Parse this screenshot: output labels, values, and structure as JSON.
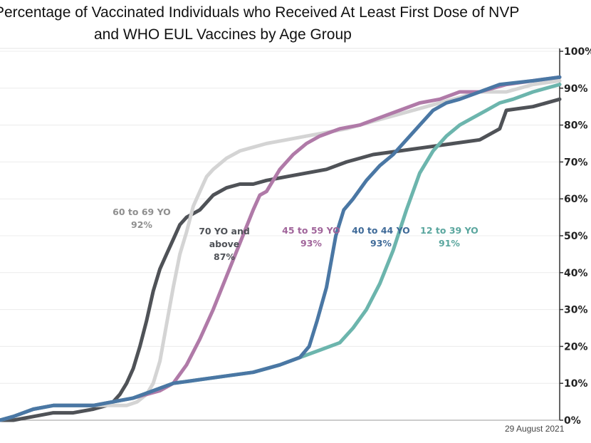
{
  "chart_data": {
    "type": "line",
    "title_line1": "Percentage of Vaccinated Individuals who Received At Least First Dose of NVP",
    "title_line2": "and WHO EUL Vaccines by Age Group",
    "ylim": [
      0,
      100
    ],
    "y_ticks": [
      "0%",
      "10%",
      "20%",
      "30%",
      "40%",
      "50%",
      "60%",
      "70%",
      "80%",
      "90%",
      "100%"
    ],
    "grid": "horizontal",
    "date_note": "29 August 2021",
    "colors": {
      "60 to 69 YO": "#d4d4d4",
      "70 YO and above": "#4f5257",
      "45 to 59 YO": "#b07aa8",
      "40 to 44 YO": "#4a77a4",
      "12 to 39 YO": "#6cb5ad"
    },
    "series": [
      {
        "name": "60 to 69 YO",
        "label_lines": [
          "60 to 69 YO",
          "92%"
        ],
        "final": "92%",
        "points": [
          [
            0,
            0
          ],
          [
            10,
            1
          ],
          [
            25,
            3
          ],
          [
            40,
            4
          ],
          [
            55,
            4
          ],
          [
            70,
            4
          ],
          [
            85,
            4
          ],
          [
            95,
            4
          ],
          [
            103,
            5
          ],
          [
            110,
            7
          ],
          [
            115,
            10
          ],
          [
            120,
            16
          ],
          [
            125,
            26
          ],
          [
            130,
            36
          ],
          [
            135,
            45
          ],
          [
            140,
            51
          ],
          [
            145,
            58
          ],
          [
            150,
            62
          ],
          [
            155,
            66
          ],
          [
            160,
            68
          ],
          [
            170,
            71
          ],
          [
            180,
            73
          ],
          [
            190,
            74
          ],
          [
            200,
            75
          ],
          [
            215,
            76
          ],
          [
            230,
            77
          ],
          [
            245,
            78
          ],
          [
            260,
            79
          ],
          [
            280,
            81
          ],
          [
            300,
            83
          ],
          [
            320,
            85
          ],
          [
            340,
            87
          ],
          [
            360,
            89
          ],
          [
            380,
            89
          ],
          [
            400,
            91
          ],
          [
            420,
            92
          ]
        ]
      },
      {
        "name": "70 YO and above",
        "label_lines": [
          "70 YO and",
          "above",
          "87%"
        ],
        "final": "87%",
        "points": [
          [
            0,
            0
          ],
          [
            10,
            0
          ],
          [
            25,
            1
          ],
          [
            40,
            2
          ],
          [
            55,
            2
          ],
          [
            70,
            3
          ],
          [
            80,
            4
          ],
          [
            85,
            5
          ],
          [
            90,
            7
          ],
          [
            95,
            10
          ],
          [
            100,
            14
          ],
          [
            105,
            20
          ],
          [
            110,
            27
          ],
          [
            115,
            35
          ],
          [
            120,
            41
          ],
          [
            125,
            45
          ],
          [
            130,
            49
          ],
          [
            135,
            53
          ],
          [
            140,
            55
          ],
          [
            150,
            57
          ],
          [
            160,
            61
          ],
          [
            170,
            63
          ],
          [
            180,
            64
          ],
          [
            190,
            64
          ],
          [
            200,
            65
          ],
          [
            215,
            66
          ],
          [
            230,
            67
          ],
          [
            245,
            68
          ],
          [
            260,
            70
          ],
          [
            280,
            72
          ],
          [
            300,
            73
          ],
          [
            320,
            74
          ],
          [
            340,
            75
          ],
          [
            360,
            76
          ],
          [
            375,
            79
          ],
          [
            380,
            84
          ],
          [
            400,
            85
          ],
          [
            420,
            87
          ]
        ]
      },
      {
        "name": "45 to 59 YO",
        "label_lines": [
          "45 to 59 YO",
          "93%"
        ],
        "final": "93%",
        "points": [
          [
            0,
            0
          ],
          [
            10,
            1
          ],
          [
            25,
            3
          ],
          [
            40,
            4
          ],
          [
            55,
            4
          ],
          [
            70,
            4
          ],
          [
            85,
            5
          ],
          [
            100,
            6
          ],
          [
            110,
            7
          ],
          [
            120,
            8
          ],
          [
            130,
            10
          ],
          [
            140,
            15
          ],
          [
            150,
            22
          ],
          [
            160,
            30
          ],
          [
            170,
            39
          ],
          [
            180,
            48
          ],
          [
            190,
            57
          ],
          [
            195,
            61
          ],
          [
            200,
            62
          ],
          [
            210,
            68
          ],
          [
            220,
            72
          ],
          [
            230,
            75
          ],
          [
            240,
            77
          ],
          [
            255,
            79
          ],
          [
            270,
            80
          ],
          [
            285,
            82
          ],
          [
            300,
            84
          ],
          [
            315,
            86
          ],
          [
            330,
            87
          ],
          [
            345,
            89
          ],
          [
            360,
            89
          ],
          [
            380,
            91
          ],
          [
            400,
            92
          ],
          [
            420,
            93
          ]
        ]
      },
      {
        "name": "40 to 44 YO",
        "label_lines": [
          "40 to 44 YO",
          "93%"
        ],
        "final": "93%",
        "points": [
          [
            0,
            0
          ],
          [
            10,
            1
          ],
          [
            25,
            3
          ],
          [
            40,
            4
          ],
          [
            55,
            4
          ],
          [
            70,
            4
          ],
          [
            85,
            5
          ],
          [
            100,
            6
          ],
          [
            115,
            8
          ],
          [
            130,
            10
          ],
          [
            150,
            11
          ],
          [
            170,
            12
          ],
          [
            190,
            13
          ],
          [
            210,
            15
          ],
          [
            225,
            17
          ],
          [
            232,
            20
          ],
          [
            238,
            27
          ],
          [
            245,
            36
          ],
          [
            252,
            50
          ],
          [
            258,
            57
          ],
          [
            265,
            60
          ],
          [
            275,
            65
          ],
          [
            285,
            69
          ],
          [
            295,
            72
          ],
          [
            305,
            76
          ],
          [
            315,
            80
          ],
          [
            325,
            84
          ],
          [
            335,
            86
          ],
          [
            345,
            87
          ],
          [
            360,
            89
          ],
          [
            375,
            91
          ],
          [
            400,
            92
          ],
          [
            420,
            93
          ]
        ]
      },
      {
        "name": "12 to 39 YO",
        "label_lines": [
          "12 to 39 YO",
          "91%"
        ],
        "final": "91%",
        "points": [
          [
            0,
            0
          ],
          [
            10,
            1
          ],
          [
            25,
            3
          ],
          [
            40,
            4
          ],
          [
            55,
            4
          ],
          [
            70,
            4
          ],
          [
            85,
            5
          ],
          [
            100,
            6
          ],
          [
            115,
            8
          ],
          [
            130,
            10
          ],
          [
            150,
            11
          ],
          [
            170,
            12
          ],
          [
            190,
            13
          ],
          [
            210,
            15
          ],
          [
            225,
            17
          ],
          [
            240,
            19
          ],
          [
            255,
            21
          ],
          [
            265,
            25
          ],
          [
            275,
            30
          ],
          [
            285,
            37
          ],
          [
            295,
            46
          ],
          [
            305,
            57
          ],
          [
            315,
            67
          ],
          [
            325,
            73
          ],
          [
            335,
            77
          ],
          [
            345,
            80
          ],
          [
            355,
            82
          ],
          [
            365,
            84
          ],
          [
            375,
            86
          ],
          [
            385,
            87
          ],
          [
            400,
            89
          ],
          [
            420,
            91
          ]
        ]
      }
    ]
  }
}
